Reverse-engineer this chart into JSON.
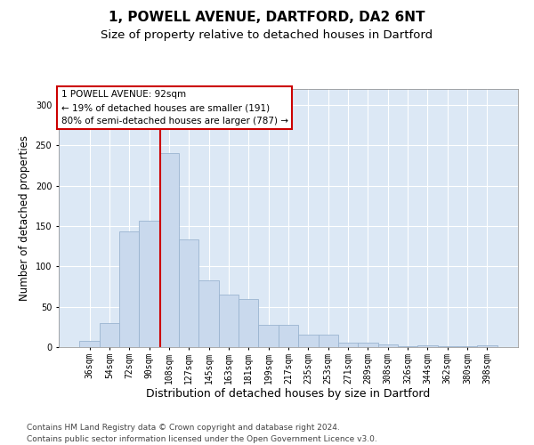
{
  "title1": "1, POWELL AVENUE, DARTFORD, DA2 6NT",
  "title2": "Size of property relative to detached houses in Dartford",
  "xlabel": "Distribution of detached houses by size in Dartford",
  "ylabel": "Number of detached properties",
  "categories": [
    "36sqm",
    "54sqm",
    "72sqm",
    "90sqm",
    "108sqm",
    "127sqm",
    "145sqm",
    "163sqm",
    "181sqm",
    "199sqm",
    "217sqm",
    "235sqm",
    "253sqm",
    "271sqm",
    "289sqm",
    "308sqm",
    "326sqm",
    "344sqm",
    "362sqm",
    "380sqm",
    "398sqm"
  ],
  "values": [
    8,
    30,
    144,
    157,
    241,
    134,
    83,
    65,
    60,
    28,
    28,
    16,
    16,
    6,
    6,
    3,
    1,
    2,
    1,
    1,
    2
  ],
  "bar_color": "#c9d9ed",
  "bar_edge_color": "#9ab4d0",
  "vline_x_index": 3.55,
  "vline_color": "#cc0000",
  "annotation_text": "1 POWELL AVENUE: 92sqm\n← 19% of detached houses are smaller (191)\n80% of semi-detached houses are larger (787) →",
  "annotation_box_facecolor": "white",
  "annotation_box_edgecolor": "#cc0000",
  "footnote_line1": "Contains HM Land Registry data © Crown copyright and database right 2024.",
  "footnote_line2": "Contains public sector information licensed under the Open Government Licence v3.0.",
  "ylim": [
    0,
    320
  ],
  "yticks": [
    0,
    50,
    100,
    150,
    200,
    250,
    300
  ],
  "plot_bg_color": "#dce8f5",
  "title1_fontsize": 11,
  "title2_fontsize": 9.5,
  "xlabel_fontsize": 9,
  "ylabel_fontsize": 8.5,
  "tick_fontsize": 7,
  "annotation_fontsize": 7.5,
  "footnote_fontsize": 6.5
}
